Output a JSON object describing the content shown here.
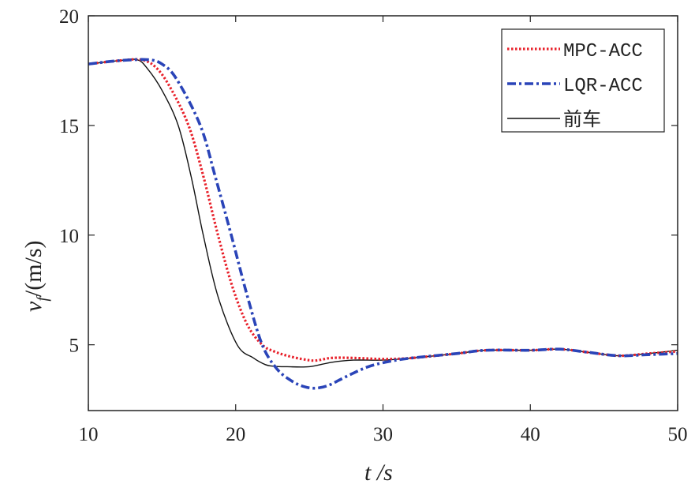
{
  "chart_data": {
    "type": "line",
    "title": "",
    "xlabel": "t /s",
    "ylabel_main": "v",
    "ylabel_sub": "f",
    "ylabel_unit": "/(m/s)",
    "xlim": [
      10,
      50
    ],
    "ylim": [
      2,
      20
    ],
    "xticks": [
      10,
      20,
      30,
      40,
      50
    ],
    "yticks": [
      5,
      10,
      15,
      20
    ],
    "grid": false,
    "legend_position": "top-right",
    "series": [
      {
        "name": "MPC-ACC",
        "color": "#e8202a",
        "style": "dotted",
        "x": [
          10,
          12,
          13.5,
          14.5,
          15.5,
          16.8,
          17.8,
          18.8,
          19.8,
          20.8,
          21.8,
          22.6,
          23.5,
          24.5,
          25.4,
          26.5,
          28,
          30,
          32,
          35,
          37,
          40,
          42,
          44,
          46,
          48,
          50
        ],
        "y": [
          17.8,
          17.95,
          18.0,
          17.7,
          16.8,
          15.0,
          12.7,
          10.0,
          7.6,
          5.9,
          5.0,
          4.7,
          4.5,
          4.35,
          4.28,
          4.4,
          4.4,
          4.35,
          4.4,
          4.6,
          4.75,
          4.75,
          4.8,
          4.65,
          4.5,
          4.6,
          4.7
        ]
      },
      {
        "name": "LQR-ACC",
        "color": "#2a44b8",
        "style": "dashdot",
        "x": [
          10,
          12,
          14,
          15,
          16,
          17.6,
          18.6,
          19.7,
          20.8,
          21.8,
          22.8,
          23.8,
          24.6,
          25.4,
          26.3,
          27.5,
          29,
          30.5,
          32,
          35,
          37,
          40,
          42,
          44,
          46,
          48,
          50
        ],
        "y": [
          17.8,
          17.95,
          18.0,
          17.8,
          17.1,
          15.0,
          12.7,
          10.0,
          7.2,
          5.0,
          3.9,
          3.35,
          3.1,
          3.02,
          3.15,
          3.55,
          4.0,
          4.25,
          4.4,
          4.6,
          4.75,
          4.75,
          4.8,
          4.65,
          4.5,
          4.55,
          4.6
        ]
      },
      {
        "name": "前车",
        "color": "#111111",
        "style": "solid",
        "x": [
          10,
          12,
          13.3,
          14,
          15,
          16.1,
          17,
          17.8,
          18.8,
          20.1,
          21.2,
          22,
          22.6,
          23.5,
          25,
          26.5,
          28,
          30,
          32,
          35,
          37,
          40,
          42,
          44,
          46,
          48,
          50
        ],
        "y": [
          17.8,
          17.95,
          18.0,
          17.6,
          16.6,
          15.0,
          12.6,
          10.0,
          7.2,
          5.0,
          4.4,
          4.1,
          4.02,
          4.0,
          4.0,
          4.2,
          4.3,
          4.3,
          4.4,
          4.6,
          4.75,
          4.75,
          4.8,
          4.65,
          4.5,
          4.6,
          4.75
        ]
      }
    ]
  }
}
